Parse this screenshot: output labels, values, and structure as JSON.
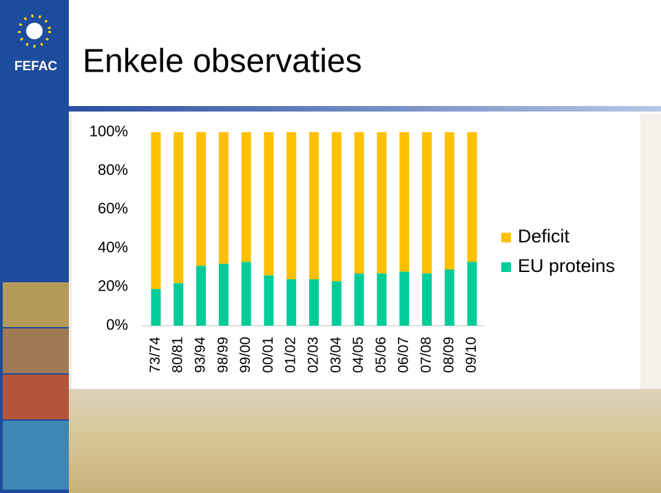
{
  "header": {
    "logo": "FEFAC",
    "title": "Enkele observaties"
  },
  "chart_data": {
    "type": "stacked-bar",
    "categories": [
      "73/74",
      "80/81",
      "93/94",
      "98/99",
      "99/00",
      "00/01",
      "01/02",
      "02/03",
      "03/04",
      "04/05",
      "05/06",
      "06/07",
      "07/08",
      "08/09",
      "09/10"
    ],
    "series": [
      {
        "name": "EU proteins",
        "color": "#00cc99",
        "values": [
          19,
          22,
          31,
          32,
          33,
          26,
          24,
          24,
          23,
          27,
          27,
          28,
          27,
          29,
          33
        ]
      },
      {
        "name": "Deficit",
        "color": "#ffc000",
        "values": [
          81,
          78,
          69,
          68,
          67,
          74,
          76,
          76,
          77,
          73,
          73,
          72,
          73,
          71,
          67
        ]
      }
    ],
    "ylim": [
      0,
      100
    ],
    "yticks": [
      {
        "value": 0,
        "label": "0%"
      },
      {
        "value": 20,
        "label": "20%"
      },
      {
        "value": 40,
        "label": "40%"
      },
      {
        "value": 60,
        "label": "60%"
      },
      {
        "value": 80,
        "label": "80%"
      },
      {
        "value": 100,
        "label": "100%"
      }
    ],
    "legend": "right"
  }
}
